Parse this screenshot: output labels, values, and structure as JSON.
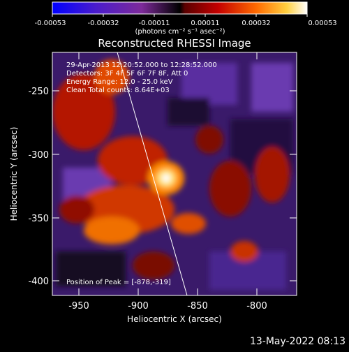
{
  "colorbar": {
    "tick_labels": [
      "-0.00053",
      "-0.00032",
      "-0.00011",
      "0.00011",
      "0.00032",
      "0.00053"
    ],
    "units_label": "(photons cm⁻² s⁻¹ asec⁻²)"
  },
  "plot": {
    "title": "Reconstructed RHESSI Image",
    "xlabel": "Heliocentric X (arcsec)",
    "ylabel": "Heliocentric Y (arcsec)",
    "x_ticks": [
      "-950",
      "-900",
      "-850",
      "-800"
    ],
    "y_ticks": [
      "-250",
      "-300",
      "-350",
      "-400"
    ],
    "info": {
      "time_range": "29-Apr-2013 12:20:52.000 to 12:28:52.000",
      "detectors": "Detectors: 3F 4F 5F 6F 7F 8F, Att 0",
      "energy": "Energy Range: 12.0 - 25.0 keV",
      "clean": "Clean     Total counts: 8.64E+03"
    },
    "peak_label": "Position of Peak = [-878,-319]"
  },
  "footer": {
    "date": "13-May-2022 08:13"
  }
}
